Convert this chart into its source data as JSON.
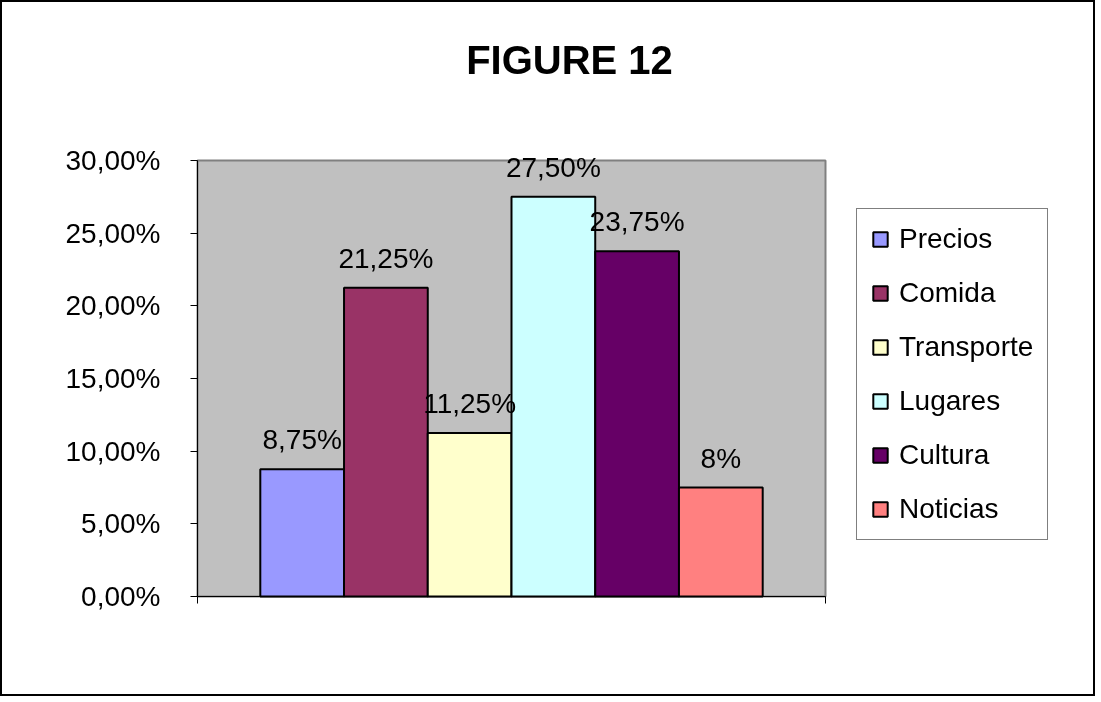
{
  "chart_data": {
    "type": "bar",
    "title": "FIGURE 12",
    "categories": [
      null
    ],
    "series": [
      {
        "name": "Precios",
        "color": "#9999ff",
        "values": [
          8.75
        ],
        "value_labels": [
          "8,75%"
        ]
      },
      {
        "name": "Comida",
        "color": "#993366",
        "values": [
          21.25
        ],
        "value_labels": [
          "21,25%"
        ]
      },
      {
        "name": "Transporte",
        "color": "#ffffcc",
        "values": [
          11.25
        ],
        "value_labels": [
          "11,25%"
        ]
      },
      {
        "name": "Lugares",
        "color": "#ccffff",
        "values": [
          27.5
        ],
        "value_labels": [
          "27,50%"
        ]
      },
      {
        "name": "Cultura",
        "color": "#660066",
        "values": [
          23.75
        ],
        "value_labels": [
          "23,75%"
        ]
      },
      {
        "name": "Noticias",
        "color": "#ff8080",
        "values": [
          7.5
        ],
        "value_labels": [
          "8%"
        ]
      }
    ],
    "ylim": [
      0,
      30
    ],
    "yticks": [
      {
        "value": 0,
        "label": "0,00%"
      },
      {
        "value": 5,
        "label": "5,00%"
      },
      {
        "value": 10,
        "label": "10,00%"
      },
      {
        "value": 15,
        "label": "15,00%"
      },
      {
        "value": 20,
        "label": "20,00%"
      },
      {
        "value": 25,
        "label": "25,00%"
      },
      {
        "value": 30,
        "label": "30,00%"
      }
    ],
    "grid": false,
    "legend": "right",
    "tick_labels": "y"
  }
}
